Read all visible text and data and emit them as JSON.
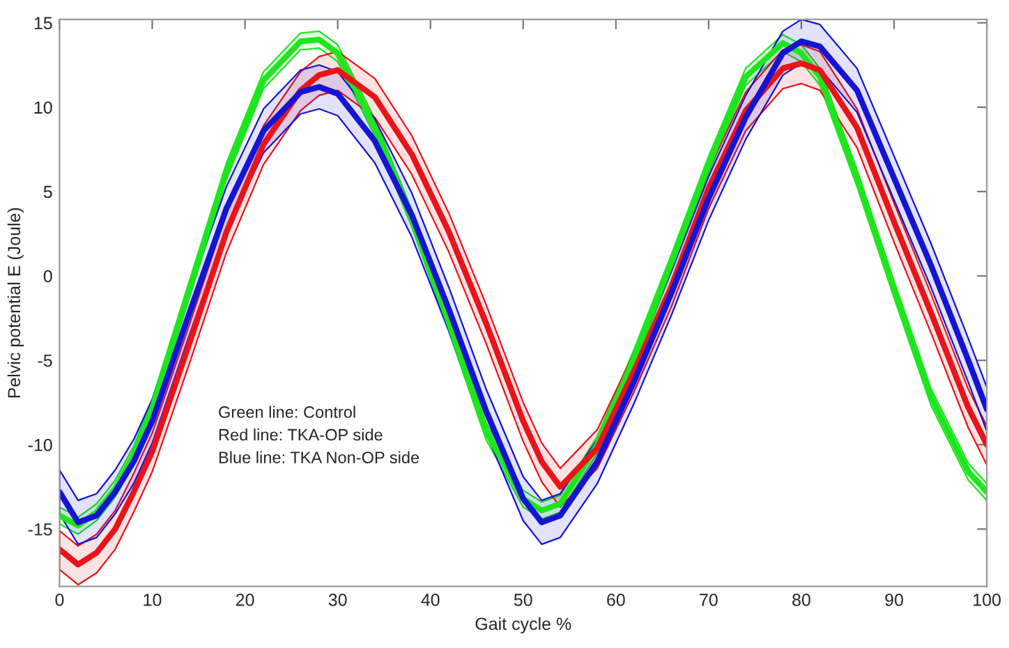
{
  "chart_data": {
    "type": "line",
    "xlabel": "Gait cycle %",
    "ylabel": "Pelvic potential E (Joule)",
    "annotations": [
      "Green line: Control",
      "Red line: TKA-OP side",
      "Blue line: TKA Non-OP side"
    ],
    "x": [
      0,
      2,
      4,
      6,
      8,
      10,
      14,
      18,
      22,
      26,
      28,
      30,
      34,
      38,
      42,
      46,
      50,
      52,
      54,
      58,
      62,
      66,
      70,
      74,
      78,
      80,
      82,
      86,
      90,
      94,
      98,
      100
    ],
    "xlim": [
      0,
      100
    ],
    "xticks": [
      0,
      10,
      20,
      30,
      40,
      50,
      60,
      70,
      80,
      90,
      100
    ],
    "ylim": [
      -18.4,
      15.2
    ],
    "yticks": [
      -15,
      -10,
      -5,
      0,
      5,
      10,
      15
    ],
    "series": [
      {
        "color": "#1ee61e",
        "values": [
          -14.2,
          -14.8,
          -14.0,
          -12.6,
          -10.6,
          -7.8,
          -0.8,
          6.2,
          11.6,
          13.9,
          14.0,
          13.2,
          8.8,
          3.4,
          -2.8,
          -9.2,
          -13.2,
          -13.9,
          -13.5,
          -10.0,
          -4.8,
          0.8,
          6.6,
          11.8,
          13.8,
          13.2,
          11.8,
          5.8,
          -0.8,
          -7.2,
          -11.6,
          -12.8
        ],
        "upper": [
          -13.7,
          -14.3,
          -13.5,
          -12.1,
          -10.1,
          -7.3,
          -0.3,
          6.7,
          12.1,
          14.4,
          14.5,
          13.7,
          9.3,
          3.9,
          -2.3,
          -8.7,
          -12.7,
          -13.4,
          -13.0,
          -9.5,
          -4.3,
          1.3,
          7.1,
          12.3,
          14.3,
          13.7,
          12.3,
          6.3,
          -0.3,
          -6.7,
          -11.1,
          -12.3
        ],
        "lower": [
          -14.7,
          -15.3,
          -14.5,
          -13.1,
          -11.1,
          -8.3,
          -1.3,
          5.7,
          11.1,
          13.4,
          13.5,
          12.7,
          8.3,
          2.9,
          -3.3,
          -9.7,
          -13.7,
          -14.4,
          -14.0,
          -10.5,
          -5.3,
          0.3,
          6.1,
          11.3,
          13.3,
          12.7,
          11.3,
          5.3,
          -1.3,
          -7.7,
          -12.1,
          -13.3
        ]
      },
      {
        "color": "#e8141a",
        "values": [
          -16.2,
          -17.1,
          -16.4,
          -15.0,
          -12.8,
          -10.4,
          -4.0,
          2.6,
          7.8,
          11.0,
          11.9,
          12.2,
          10.6,
          7.2,
          2.6,
          -2.8,
          -8.6,
          -11.0,
          -12.5,
          -10.2,
          -5.6,
          -0.6,
          5.2,
          9.8,
          12.3,
          12.6,
          12.2,
          8.8,
          3.2,
          -2.2,
          -7.8,
          -10.0
        ],
        "upper": [
          -15.1,
          -16.0,
          -15.3,
          -13.9,
          -11.7,
          -9.3,
          -2.9,
          3.7,
          8.9,
          12.1,
          13.0,
          13.3,
          11.7,
          8.3,
          3.7,
          -1.7,
          -7.5,
          -9.9,
          -11.4,
          -9.1,
          -4.5,
          0.5,
          6.3,
          10.9,
          13.4,
          13.7,
          13.3,
          9.9,
          4.3,
          -1.1,
          -6.7,
          -8.9
        ],
        "lower": [
          -17.4,
          -18.3,
          -17.6,
          -16.2,
          -14.0,
          -11.6,
          -5.2,
          1.4,
          6.6,
          9.8,
          10.7,
          11.0,
          9.4,
          6.0,
          1.4,
          -4.0,
          -9.8,
          -12.2,
          -13.7,
          -11.4,
          -6.8,
          -1.8,
          4.0,
          8.6,
          11.1,
          11.4,
          11.0,
          7.6,
          2.0,
          -3.4,
          -9.0,
          -11.2
        ]
      },
      {
        "color": "#1414d2",
        "values": [
          -12.8,
          -14.6,
          -14.2,
          -12.8,
          -11.0,
          -8.6,
          -2.2,
          4.0,
          8.6,
          10.9,
          11.2,
          10.8,
          8.0,
          3.6,
          -2.0,
          -8.0,
          -13.2,
          -14.6,
          -14.2,
          -11.0,
          -6.2,
          -1.0,
          4.6,
          9.4,
          13.2,
          13.9,
          13.6,
          11.0,
          5.8,
          0.6,
          -5.0,
          -7.9
        ],
        "upper": [
          -11.5,
          -13.3,
          -12.9,
          -11.5,
          -9.7,
          -7.3,
          -0.9,
          5.3,
          9.9,
          12.2,
          12.5,
          12.1,
          9.3,
          4.9,
          -0.7,
          -6.7,
          -11.9,
          -13.3,
          -12.9,
          -9.7,
          -4.9,
          0.3,
          5.9,
          10.7,
          14.5,
          15.2,
          14.9,
          12.3,
          7.1,
          1.9,
          -3.7,
          -6.6
        ],
        "lower": [
          -14.1,
          -15.9,
          -15.5,
          -14.1,
          -12.3,
          -9.9,
          -3.5,
          2.7,
          7.3,
          9.6,
          9.9,
          9.5,
          6.7,
          2.3,
          -3.3,
          -9.3,
          -14.5,
          -15.9,
          -15.5,
          -12.3,
          -7.5,
          -2.3,
          3.3,
          8.1,
          11.9,
          12.6,
          12.3,
          9.7,
          4.5,
          -0.7,
          -6.3,
          -9.2
        ]
      }
    ]
  }
}
